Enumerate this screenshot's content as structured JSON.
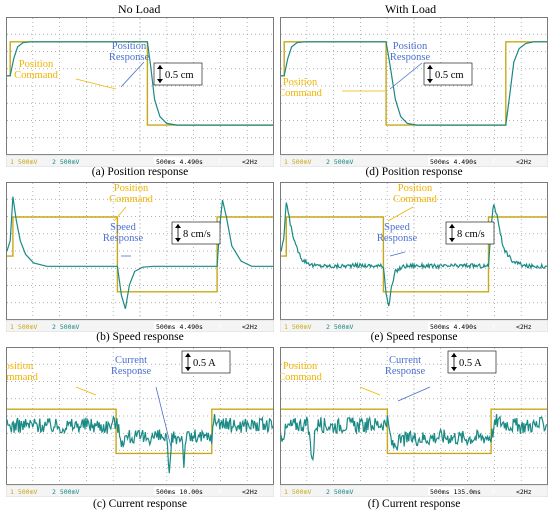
{
  "column_headers": [
    "No Load",
    "With Load"
  ],
  "colors": {
    "command": "#c8a818",
    "response": "#1a8a84",
    "annotation_blue": "#4a6fd0",
    "annotation_yellow": "#f0b400",
    "grid": "#9a9a9a",
    "screen_bg": "#ffffff",
    "statusbar_bg": "#f4f4f4"
  },
  "chart_data": [
    {
      "type": "line",
      "id": "a",
      "caption": "(a) Position response",
      "annotations": {
        "command": [
          "Position",
          "Command"
        ],
        "response": [
          "Position",
          "Response"
        ],
        "scale": "0.5 cm"
      },
      "statusbar": {
        "ch_a": "1  500mV",
        "ch_b": "2  500mV",
        "timebase": "500ms",
        "offset": "4.490s",
        "trig": "F",
        "freq": "<2Hz"
      },
      "xlim": [
        0,
        10
      ],
      "ylim": [
        -4,
        4
      ],
      "series": [
        {
          "role": "command",
          "x": [
            0,
            0.12,
            0.12,
            5.28,
            5.28,
            10
          ],
          "y": [
            0.6,
            0.6,
            2.6,
            2.6,
            -2.3,
            -2.3
          ]
        },
        {
          "role": "response",
          "x": [
            0,
            0.12,
            0.25,
            0.4,
            0.6,
            0.9,
            1.2,
            5.28,
            5.4,
            5.55,
            5.75,
            6.0,
            6.4,
            10
          ],
          "y": [
            0.6,
            0.6,
            1.6,
            2.3,
            2.55,
            2.6,
            2.6,
            2.6,
            1.2,
            -0.8,
            -1.8,
            -2.2,
            -2.3,
            -2.3
          ]
        }
      ]
    },
    {
      "type": "line",
      "id": "b",
      "caption": "(b) Speed response",
      "annotations": {
        "command": [
          "Position",
          "Command"
        ],
        "response": [
          "Speed",
          "Response"
        ],
        "scale": "8 cm/s"
      },
      "statusbar": {
        "ch_a": "1  500mV",
        "ch_b": "2  500mV",
        "timebase": "500ms",
        "offset": "4.490s",
        "trig": "F",
        "freq": "<2Hz"
      },
      "xlim": [
        0,
        10
      ],
      "ylim": [
        -4,
        4
      ],
      "series": [
        {
          "role": "command",
          "x": [
            0,
            0.22,
            0.22,
            4.15,
            4.15,
            7.9,
            7.9,
            10
          ],
          "y": [
            -0.3,
            -0.3,
            2.0,
            2.0,
            -2.4,
            -2.4,
            2.0,
            2.0
          ]
        },
        {
          "role": "response",
          "x": [
            0,
            0.12,
            0.22,
            0.35,
            0.5,
            0.7,
            1.0,
            1.5,
            4.15,
            4.3,
            4.45,
            4.6,
            4.8,
            5.1,
            5.5,
            7.9,
            8.0,
            8.1,
            8.25,
            8.45,
            8.8,
            9.2,
            10
          ],
          "y": [
            0,
            0.6,
            3.2,
            1.8,
            0.6,
            -0.2,
            -0.7,
            -0.9,
            -0.9,
            -2.6,
            -3.4,
            -2.0,
            -1.2,
            -0.95,
            -0.9,
            -0.9,
            1.5,
            3.0,
            2.0,
            0.3,
            -0.6,
            -0.9,
            -0.9
          ]
        }
      ]
    },
    {
      "type": "line",
      "id": "c",
      "caption": "(c) Current response",
      "annotations": {
        "command": [
          "Position",
          "Command"
        ],
        "response": [
          "Current",
          "Response"
        ],
        "scale": "0.5 A"
      },
      "statusbar": {
        "ch_a": "1  500mV",
        "ch_b": "2  500mV",
        "timebase": "500ms",
        "offset": "10.00s",
        "trig": "F",
        "freq": "<2Hz"
      },
      "xlim": [
        0,
        10
      ],
      "ylim": [
        -4,
        4
      ],
      "series": [
        {
          "role": "command",
          "x": [
            0,
            4.1,
            4.1,
            7.7,
            7.7,
            10
          ],
          "y": [
            0.4,
            0.4,
            -2.2,
            -2.2,
            0.4,
            0.4
          ]
        },
        {
          "role": "response",
          "x": [
            0,
            1,
            2,
            3,
            3.8,
            4.1,
            4.3,
            4.6,
            5,
            5.6,
            6,
            6.1,
            6.2,
            6.3,
            6.6,
            6.65,
            6.7,
            7,
            7.4,
            7.7,
            7.8,
            8.2,
            8.6,
            9,
            10
          ],
          "y": [
            -0.6,
            -0.5,
            -0.6,
            -0.5,
            -0.6,
            -0.3,
            -1.4,
            -1.2,
            -1.3,
            -1.2,
            -1.3,
            -3.8,
            -1.3,
            -1.3,
            -1.2,
            -3.2,
            -1.3,
            -1.2,
            -1.3,
            -1.2,
            -0.2,
            -0.5,
            -0.6,
            -0.5,
            -0.6
          ]
        }
      ]
    },
    {
      "type": "line",
      "id": "d",
      "caption": "(d) Position response",
      "annotations": {
        "command": [
          "Position",
          "Command"
        ],
        "response": [
          "Position",
          "Response"
        ],
        "scale": "0.5 cm"
      },
      "statusbar": {
        "ch_a": "1  500mV",
        "ch_b": "2  500mV",
        "timebase": "500ms",
        "offset": "4.490s",
        "trig": "F",
        "freq": "<2Hz"
      },
      "xlim": [
        0,
        10
      ],
      "ylim": [
        -4,
        4
      ],
      "series": [
        {
          "role": "command",
          "x": [
            0,
            0.12,
            0.12,
            3.95,
            3.95,
            8.45,
            8.45,
            10
          ],
          "y": [
            0.6,
            0.6,
            2.6,
            2.6,
            -2.3,
            -2.3,
            2.6,
            2.6
          ]
        },
        {
          "role": "response",
          "x": [
            0,
            0.12,
            0.25,
            0.4,
            0.6,
            0.9,
            1.2,
            3.95,
            4.1,
            4.3,
            4.5,
            4.75,
            5.1,
            8.45,
            8.6,
            8.75,
            8.95,
            9.2,
            9.5,
            10
          ],
          "y": [
            0.6,
            0.6,
            1.6,
            2.3,
            2.55,
            2.6,
            2.6,
            2.6,
            1.2,
            -0.8,
            -1.8,
            -2.2,
            -2.3,
            -2.3,
            -0.5,
            1.4,
            2.2,
            2.5,
            2.6,
            2.6
          ]
        }
      ]
    },
    {
      "type": "line",
      "id": "e",
      "caption": "(e) Speed response",
      "annotations": {
        "command": [
          "Position",
          "Command"
        ],
        "response": [
          "Speed",
          "Response"
        ],
        "scale": "8 cm/s"
      },
      "statusbar": {
        "ch_a": "1  500mV",
        "ch_b": "2  500mV",
        "timebase": "500ms",
        "offset": "4.490s",
        "trig": "F",
        "freq": "<2Hz"
      },
      "xlim": [
        0,
        10
      ],
      "ylim": [
        -4,
        4
      ],
      "series": [
        {
          "role": "command",
          "x": [
            0,
            0.2,
            0.2,
            3.85,
            3.85,
            7.8,
            7.8,
            10
          ],
          "y": [
            -0.3,
            -0.3,
            2.0,
            2.0,
            -2.4,
            -2.4,
            2.0,
            2.0
          ]
        },
        {
          "role": "response",
          "x": [
            0,
            0.1,
            0.2,
            0.35,
            0.55,
            0.8,
            1.2,
            2,
            3,
            3.85,
            3.95,
            4.05,
            4.15,
            4.3,
            4.6,
            5,
            6,
            7,
            7.8,
            7.9,
            8.0,
            8.15,
            8.35,
            8.7,
            9.2,
            10
          ],
          "y": [
            0,
            0.6,
            2.9,
            1.6,
            0.3,
            -0.5,
            -0.85,
            -0.9,
            -0.85,
            -0.9,
            -2.4,
            -3.3,
            -2.2,
            -1.2,
            -0.9,
            -0.85,
            -0.9,
            -0.85,
            -0.9,
            1.5,
            2.8,
            1.9,
            0.2,
            -0.6,
            -0.9,
            -0.9
          ]
        }
      ]
    },
    {
      "type": "line",
      "id": "f",
      "caption": "(f) Current response",
      "annotations": {
        "command": [
          "Position",
          "Command"
        ],
        "response": [
          "Current",
          "Response"
        ],
        "scale": "0.5 A"
      },
      "statusbar": {
        "ch_a": "1  500mV",
        "ch_b": "2  500mV",
        "timebase": "500ms",
        "offset": "135.0ms",
        "trig": "F",
        "freq": "<2Hz"
      },
      "xlim": [
        0,
        10
      ],
      "ylim": [
        -4,
        4
      ],
      "series": [
        {
          "role": "command",
          "x": [
            0,
            4.0,
            4.0,
            7.9,
            7.9,
            10
          ],
          "y": [
            0.4,
            0.4,
            -2.2,
            -2.2,
            0.4,
            0.4
          ]
        },
        {
          "role": "response",
          "x": [
            0,
            0.3,
            0.6,
            1,
            1.2,
            1.3,
            1.5,
            2,
            2.5,
            3,
            3.5,
            4.0,
            4.2,
            4.6,
            5,
            5.5,
            6,
            7,
            7.9,
            8.1,
            8.6,
            9,
            10
          ],
          "y": [
            -1.2,
            -0.6,
            -0.5,
            -0.5,
            -2.6,
            -0.5,
            -0.5,
            -0.6,
            -0.5,
            -0.6,
            -0.5,
            -0.4,
            -1.8,
            -1.4,
            -1.3,
            -1.3,
            -1.2,
            -1.3,
            -1.2,
            -0.3,
            -0.5,
            -0.6,
            -0.5
          ]
        }
      ]
    }
  ]
}
